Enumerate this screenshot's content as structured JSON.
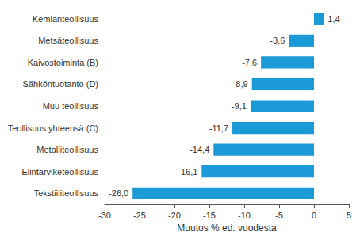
{
  "chart_data": {
    "type": "bar",
    "orientation": "horizontal",
    "categories": [
      "Kemianteollisuus",
      "Metsäteollisuus",
      "Kaivostoiminta (B)",
      "Sähköntuotanto (D)",
      "Muu teollisuus",
      "Teollisuus yhteensä (C)",
      "Metalliteollisuus",
      "Elintarviketeollisuus",
      "Tekstiiliteollisuus"
    ],
    "values": [
      1.4,
      -3.6,
      -7.6,
      -8.9,
      -9.1,
      -11.7,
      -14.4,
      -16.1,
      -26.0
    ],
    "value_labels": [
      "1,4",
      "-3,6",
      "-7,6",
      "-8,9",
      "-9,1",
      "-11,7",
      "-14,4",
      "-16,1",
      "-26,0"
    ],
    "data_labels": true,
    "color": "#1a9bd7",
    "x_label": "Muutos % ed. vuodesta",
    "xlim": [
      -30,
      5
    ],
    "xticks": [
      -30,
      -25,
      -20,
      -15,
      -10,
      -5,
      0,
      5
    ],
    "grid": false
  }
}
